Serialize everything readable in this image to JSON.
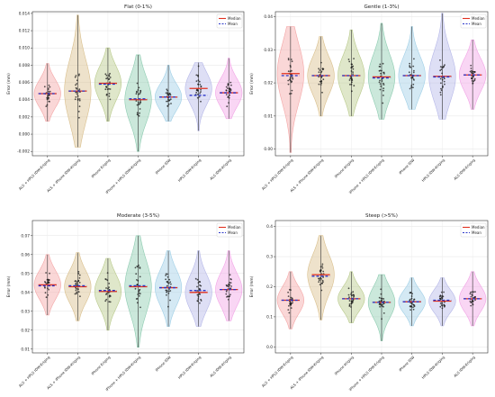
{
  "figure": {
    "legend_labels": {
      "median": "Median",
      "mean": "Mean"
    },
    "colors": {
      "median": "#e0301e",
      "mean": "#2a35c9",
      "points": "#1a1a1a",
      "violins": [
        "#f4a6a6",
        "#d9bf8c",
        "#b8c98a",
        "#8ccbb0",
        "#9fcfe6",
        "#b5b7e8",
        "#f2a3e6"
      ]
    }
  },
  "chart_data": [
    {
      "type": "violin",
      "title": "Flat (0-1%)",
      "ylabel": "Error (mm)",
      "ylim": [
        -0.0025,
        0.0142
      ],
      "yticks": [
        -0.002,
        0.0,
        0.002,
        0.004,
        0.006,
        0.008,
        0.01,
        0.012,
        0.014
      ],
      "ytick_labels": [
        "-0.002",
        "0.000",
        "0.002",
        "0.004",
        "0.006",
        "0.008",
        "0.010",
        "0.012",
        "0.014"
      ],
      "grid": true,
      "legend_position": "top-right",
      "categories": [
        "ALS + HPLS IDW-Kriging",
        "ALS + iPhone IDW-Kriging",
        "iPhone Kriging",
        "iPhone + HPLS IDW-Kriging",
        "iPhone IDW",
        "HPLS IDW-Kriging",
        "ALS IDW-Kriging"
      ],
      "medians": [
        0.0047,
        0.005,
        0.0059,
        0.004,
        0.0043,
        0.0053,
        0.0048
      ],
      "means": [
        0.0047,
        0.005,
        0.0058,
        0.0041,
        0.0043,
        0.0045,
        0.0048
      ],
      "mins": [
        0.0015,
        -0.0015,
        0.0015,
        -0.002,
        0.0015,
        0.0004,
        0.0018
      ],
      "maxs": [
        0.0082,
        0.0138,
        0.01,
        0.0092,
        0.008,
        0.0083,
        0.0088
      ]
    },
    {
      "type": "violin",
      "title": "Gentle (1-3%)",
      "ylabel": "Error (mm)",
      "ylim": [
        -0.002,
        0.0415
      ],
      "yticks": [
        0.0,
        0.01,
        0.02,
        0.03,
        0.04
      ],
      "ytick_labels": [
        "0.00",
        "0.01",
        "0.02",
        "0.03",
        "0.04"
      ],
      "grid": true,
      "legend_position": "top-right",
      "categories": [
        "ALS + HPLS IDW-Kriging",
        "ALS + iPhone IDW-Kriging",
        "iPhone Kriging",
        "iPhone + HPLS IDW-Kriging",
        "iPhone IDW",
        "HPLS IDW-Kriging",
        "ALS IDW-Kriging"
      ],
      "medians": [
        0.0228,
        0.0222,
        0.0222,
        0.0218,
        0.0222,
        0.022,
        0.0224
      ],
      "means": [
        0.0222,
        0.0222,
        0.0222,
        0.0215,
        0.0222,
        0.0218,
        0.0224
      ],
      "mins": [
        -0.001,
        0.01,
        0.01,
        0.009,
        0.012,
        0.009,
        0.012
      ],
      "maxs": [
        0.037,
        0.034,
        0.036,
        0.038,
        0.037,
        0.041,
        0.033
      ]
    },
    {
      "type": "violin",
      "title": "Moderate (3-5%)",
      "ylabel": "Error (mm)",
      "ylim": [
        0.008,
        0.078
      ],
      "yticks": [
        0.01,
        0.02,
        0.03,
        0.04,
        0.05,
        0.06,
        0.07
      ],
      "ytick_labels": [
        "0.01",
        "0.02",
        "0.03",
        "0.04",
        "0.05",
        "0.06",
        "0.07"
      ],
      "grid": true,
      "legend_position": "top-right",
      "categories": [
        "ALS + HPLS IDW-Kriging",
        "ALS + iPhone IDW-Kriging",
        "iPhone Kriging",
        "iPhone + HPLS IDW-Kriging",
        "iPhone IDW",
        "HPLS IDW-Kriging",
        "ALS IDW-Kriging"
      ],
      "medians": [
        0.044,
        0.043,
        0.0405,
        0.043,
        0.0425,
        0.04,
        0.0415
      ],
      "means": [
        0.0435,
        0.0435,
        0.041,
        0.0435,
        0.0425,
        0.041,
        0.0415
      ],
      "mins": [
        0.028,
        0.025,
        0.02,
        0.011,
        0.022,
        0.022,
        0.025
      ],
      "maxs": [
        0.06,
        0.061,
        0.058,
        0.07,
        0.062,
        0.062,
        0.062
      ]
    },
    {
      "type": "violin",
      "title": "Steep (>5%)",
      "ylabel": "Error (mm)",
      "ylim": [
        -0.02,
        0.42
      ],
      "yticks": [
        0.0,
        0.1,
        0.2,
        0.3,
        0.4
      ],
      "ytick_labels": [
        "0.0",
        "0.1",
        "0.2",
        "0.3",
        "0.4"
      ],
      "grid": true,
      "legend_position": "top-right",
      "categories": [
        "ALS + HPLS IDW-Kriging",
        "ALS + iPhone IDW-Kriging",
        "iPhone Kriging",
        "iPhone + HPLS IDW-Kriging",
        "iPhone IDW",
        "HPLS IDW-Kriging",
        "ALS IDW-Kriging"
      ],
      "medians": [
        0.155,
        0.24,
        0.16,
        0.148,
        0.15,
        0.152,
        0.16
      ],
      "means": [
        0.155,
        0.235,
        0.16,
        0.148,
        0.15,
        0.155,
        0.16
      ],
      "mins": [
        0.06,
        0.09,
        0.08,
        0.02,
        0.07,
        0.07,
        0.07
      ],
      "maxs": [
        0.25,
        0.37,
        0.25,
        0.24,
        0.23,
        0.23,
        0.25
      ]
    }
  ]
}
